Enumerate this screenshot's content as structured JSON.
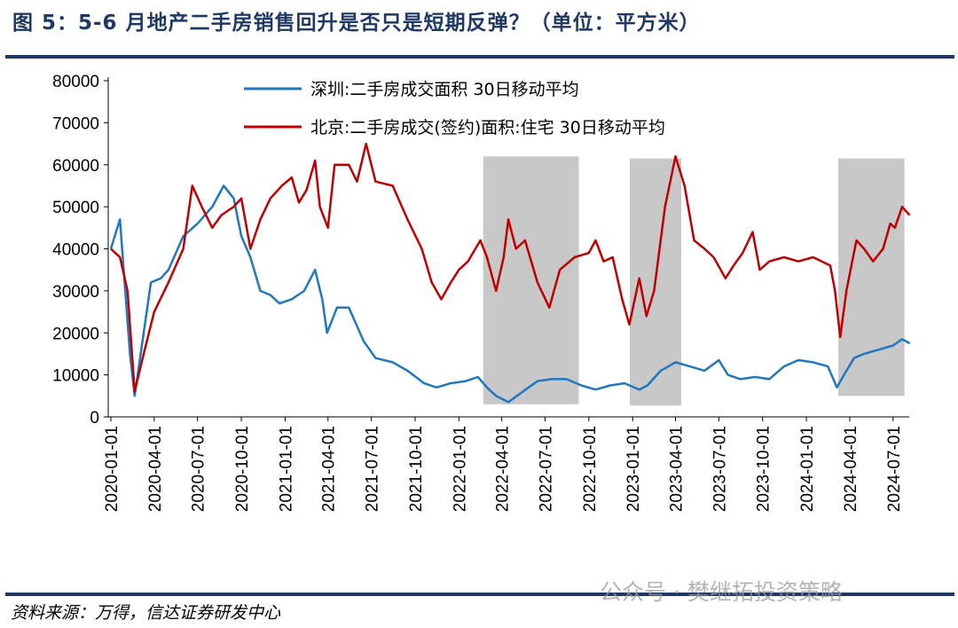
{
  "title": "图 5：5-6 月地产二手房销售回升是否只是短期反弹？（单位：平方米）",
  "source": "资料来源：万得，信达证券研发中心",
  "watermark": "公众号 · 樊继拓投资策略",
  "chart_data": {
    "type": "line",
    "title": "",
    "ylim": [
      0,
      80000
    ],
    "yticks": [
      "80000",
      "70000",
      "60000",
      "50000",
      "40000",
      "30000",
      "20000",
      "10000",
      "0"
    ],
    "xticks": [
      "2020-01-01",
      "2020-04-01",
      "2020-07-01",
      "2020-10-01",
      "2021-01-01",
      "2021-04-01",
      "2021-07-01",
      "2021-10-01",
      "2022-01-01",
      "2022-04-01",
      "2022-07-01",
      "2022-10-01",
      "2023-01-01",
      "2023-04-01",
      "2023-07-01",
      "2023-10-01",
      "2024-01-01",
      "2024-04-01",
      "2024-07-01"
    ],
    "grid": false,
    "legend_placement": "top",
    "shaded_periods": [
      [
        "2022-02-21",
        "2022-09-10"
      ],
      [
        "2022-12-26",
        "2023-04-13"
      ],
      [
        "2024-03-08",
        "2024-07-25"
      ]
    ],
    "shade_color": "#c8c8c8",
    "series": [
      {
        "name": "深圳:二手房成交面积 30日移动平均",
        "color": "#1f77c0",
        "points": [
          [
            "2020-01-01",
            40000
          ],
          [
            "2020-01-20",
            47000
          ],
          [
            "2020-02-10",
            15000
          ],
          [
            "2020-02-20",
            5000
          ],
          [
            "2020-03-10",
            20000
          ],
          [
            "2020-03-25",
            32000
          ],
          [
            "2020-04-15",
            33000
          ],
          [
            "2020-05-01",
            35000
          ],
          [
            "2020-06-01",
            43000
          ],
          [
            "2020-07-01",
            46000
          ],
          [
            "2020-08-01",
            50000
          ],
          [
            "2020-08-25",
            55000
          ],
          [
            "2020-09-15",
            52000
          ],
          [
            "2020-10-01",
            43000
          ],
          [
            "2020-10-20",
            38000
          ],
          [
            "2020-11-10",
            30000
          ],
          [
            "2020-12-01",
            29000
          ],
          [
            "2020-12-20",
            27000
          ],
          [
            "2021-01-15",
            28000
          ],
          [
            "2021-02-10",
            30000
          ],
          [
            "2021-03-05",
            35000
          ],
          [
            "2021-03-20",
            28000
          ],
          [
            "2021-03-30",
            20000
          ],
          [
            "2021-04-20",
            26000
          ],
          [
            "2021-05-15",
            26000
          ],
          [
            "2021-06-15",
            18000
          ],
          [
            "2021-07-10",
            14000
          ],
          [
            "2021-08-15",
            13000
          ],
          [
            "2021-09-15",
            11000
          ],
          [
            "2021-10-20",
            8000
          ],
          [
            "2021-11-15",
            7000
          ],
          [
            "2021-12-15",
            8000
          ],
          [
            "2022-01-15",
            8500
          ],
          [
            "2022-02-10",
            9500
          ],
          [
            "2022-03-01",
            7000
          ],
          [
            "2022-03-20",
            5000
          ],
          [
            "2022-04-15",
            3500
          ],
          [
            "2022-05-15",
            6000
          ],
          [
            "2022-06-15",
            8500
          ],
          [
            "2022-07-15",
            9000
          ],
          [
            "2022-08-15",
            9000
          ],
          [
            "2022-09-15",
            7500
          ],
          [
            "2022-10-15",
            6500
          ],
          [
            "2022-11-15",
            7500
          ],
          [
            "2022-12-15",
            8000
          ],
          [
            "2023-01-15",
            6500
          ],
          [
            "2023-02-01",
            7500
          ],
          [
            "2023-03-01",
            11000
          ],
          [
            "2023-04-01",
            13000
          ],
          [
            "2023-05-01",
            12000
          ],
          [
            "2023-06-01",
            11000
          ],
          [
            "2023-07-01",
            13500
          ],
          [
            "2023-07-20",
            10000
          ],
          [
            "2023-08-15",
            9000
          ],
          [
            "2023-09-15",
            9500
          ],
          [
            "2023-10-15",
            9000
          ],
          [
            "2023-11-15",
            12000
          ],
          [
            "2023-12-15",
            13500
          ],
          [
            "2024-01-15",
            13000
          ],
          [
            "2024-02-15",
            12000
          ],
          [
            "2024-03-05",
            7000
          ],
          [
            "2024-03-20",
            10000
          ],
          [
            "2024-04-10",
            14000
          ],
          [
            "2024-05-01",
            15000
          ],
          [
            "2024-06-01",
            16000
          ],
          [
            "2024-07-01",
            17000
          ],
          [
            "2024-07-20",
            18500
          ],
          [
            "2024-08-05",
            17500
          ]
        ]
      },
      {
        "name": "北京:二手房成交(签约)面积:住宅 30日移动平均",
        "color": "#c00000",
        "points": [
          [
            "2020-01-01",
            40000
          ],
          [
            "2020-01-20",
            38000
          ],
          [
            "2020-02-05",
            30000
          ],
          [
            "2020-02-20",
            6000
          ],
          [
            "2020-03-10",
            15000
          ],
          [
            "2020-04-01",
            25000
          ],
          [
            "2020-05-01",
            32000
          ],
          [
            "2020-06-01",
            40000
          ],
          [
            "2020-06-20",
            55000
          ],
          [
            "2020-07-10",
            50000
          ],
          [
            "2020-08-01",
            45000
          ],
          [
            "2020-08-20",
            48000
          ],
          [
            "2020-09-15",
            50000
          ],
          [
            "2020-10-01",
            52000
          ],
          [
            "2020-10-20",
            40000
          ],
          [
            "2020-11-10",
            47000
          ],
          [
            "2020-12-01",
            52000
          ],
          [
            "2020-12-25",
            55000
          ],
          [
            "2021-01-15",
            57000
          ],
          [
            "2021-01-30",
            51000
          ],
          [
            "2021-02-15",
            54000
          ],
          [
            "2021-03-05",
            61000
          ],
          [
            "2021-03-15",
            50000
          ],
          [
            "2021-04-01",
            45000
          ],
          [
            "2021-04-15",
            60000
          ],
          [
            "2021-05-15",
            60000
          ],
          [
            "2021-06-01",
            56000
          ],
          [
            "2021-06-20",
            65000
          ],
          [
            "2021-07-10",
            56000
          ],
          [
            "2021-08-15",
            55000
          ],
          [
            "2021-09-15",
            47000
          ],
          [
            "2021-10-15",
            40000
          ],
          [
            "2021-11-05",
            32000
          ],
          [
            "2021-11-25",
            28000
          ],
          [
            "2021-12-15",
            32000
          ],
          [
            "2022-01-01",
            35000
          ],
          [
            "2022-01-20",
            37000
          ],
          [
            "2022-02-15",
            42000
          ],
          [
            "2022-03-01",
            38000
          ],
          [
            "2022-03-20",
            30000
          ],
          [
            "2022-04-05",
            38000
          ],
          [
            "2022-04-15",
            47000
          ],
          [
            "2022-05-01",
            40000
          ],
          [
            "2022-05-20",
            42000
          ],
          [
            "2022-06-15",
            32000
          ],
          [
            "2022-07-10",
            26000
          ],
          [
            "2022-08-01",
            35000
          ],
          [
            "2022-09-01",
            38000
          ],
          [
            "2022-10-01",
            39000
          ],
          [
            "2022-10-15",
            42000
          ],
          [
            "2022-11-01",
            37000
          ],
          [
            "2022-11-20",
            38000
          ],
          [
            "2022-12-10",
            28000
          ],
          [
            "2022-12-25",
            22000
          ],
          [
            "2023-01-15",
            33000
          ],
          [
            "2023-01-30",
            24000
          ],
          [
            "2023-02-15",
            30000
          ],
          [
            "2023-03-10",
            50000
          ],
          [
            "2023-04-01",
            62000
          ],
          [
            "2023-04-20",
            55000
          ],
          [
            "2023-05-10",
            42000
          ],
          [
            "2023-06-01",
            40000
          ],
          [
            "2023-06-20",
            38000
          ],
          [
            "2023-07-15",
            33000
          ],
          [
            "2023-08-01",
            36000
          ],
          [
            "2023-08-20",
            39000
          ],
          [
            "2023-09-10",
            44000
          ],
          [
            "2023-09-25",
            35000
          ],
          [
            "2023-10-15",
            37000
          ],
          [
            "2023-11-15",
            38000
          ],
          [
            "2023-12-15",
            37000
          ],
          [
            "2024-01-15",
            38000
          ],
          [
            "2024-02-20",
            36000
          ],
          [
            "2024-03-01",
            30000
          ],
          [
            "2024-03-12",
            19000
          ],
          [
            "2024-03-25",
            30000
          ],
          [
            "2024-04-15",
            42000
          ],
          [
            "2024-05-01",
            40000
          ],
          [
            "2024-05-20",
            37000
          ],
          [
            "2024-06-10",
            40000
          ],
          [
            "2024-06-25",
            46000
          ],
          [
            "2024-07-05",
            45000
          ],
          [
            "2024-07-20",
            50000
          ],
          [
            "2024-08-05",
            48000
          ]
        ]
      }
    ]
  }
}
